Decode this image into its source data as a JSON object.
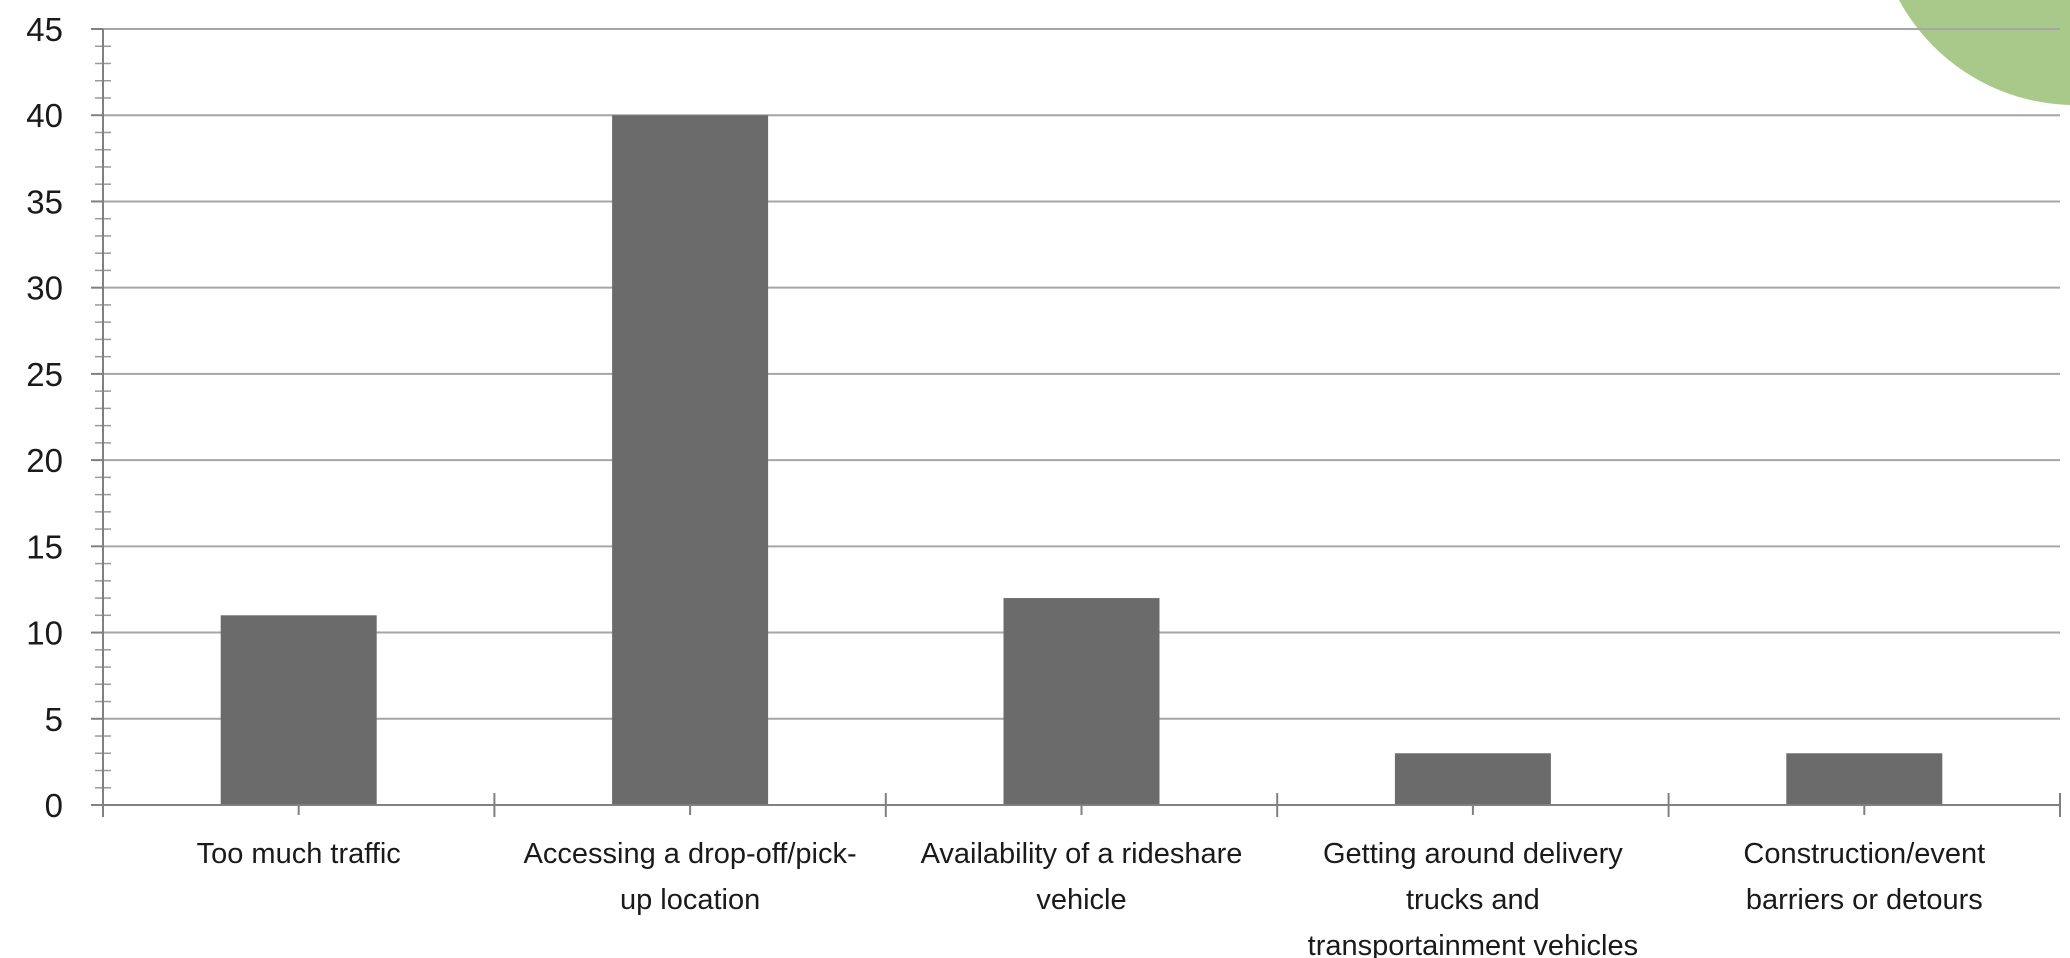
{
  "chart_data": {
    "type": "bar",
    "title": "",
    "xlabel": "",
    "ylabel": "",
    "ylim": [
      0,
      45
    ],
    "y_major_step": 5,
    "y_minor_step": 1,
    "grid": true,
    "legend": "none",
    "categories": [
      "Too much traffic",
      "Accessing a drop-off/pick-up location",
      "Availability of a rideshare vehicle",
      "Getting around delivery trucks and transportainment vehicles",
      "Construction/event barriers or detours"
    ],
    "category_lines": [
      [
        "Too much traffic"
      ],
      [
        "Accessing a drop-off/pick-",
        "up location"
      ],
      [
        "Availability of a rideshare",
        "vehicle"
      ],
      [
        "Getting around delivery",
        "trucks and",
        "transportainment vehicles"
      ],
      [
        "Construction/event",
        "barriers or detours"
      ]
    ],
    "values": [
      11,
      40,
      12,
      3,
      3
    ],
    "colors": {
      "bar": "#6b6b6b",
      "grid": "#a6a6a6",
      "axis": "#808080",
      "decoration": "#a9c98a"
    }
  }
}
